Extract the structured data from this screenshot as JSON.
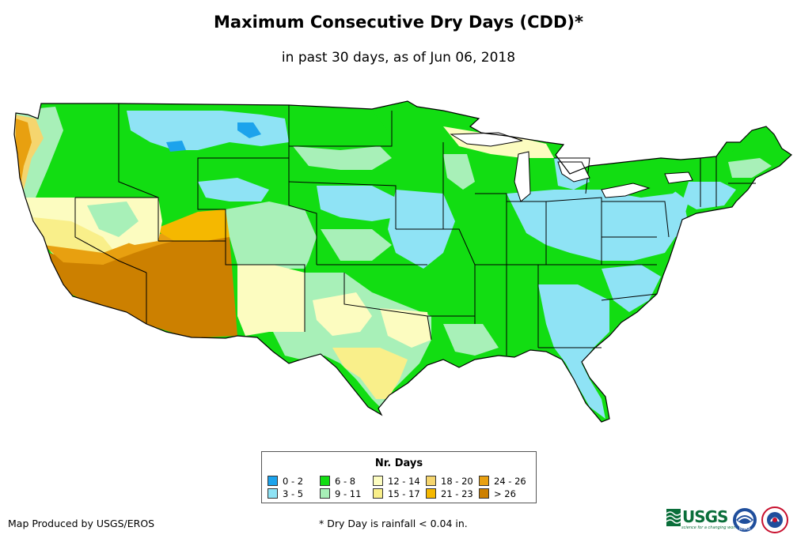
{
  "title": "Maximum Consecutive Dry Days (CDD)*",
  "subtitle": "in past 30 days, as of Jun 06, 2018",
  "legend": {
    "title": "Nr. Days",
    "items": [
      {
        "label": "0 - 2",
        "color": "#1ca3ec"
      },
      {
        "label": "3 - 5",
        "color": "#8fe3f5"
      },
      {
        "label": "6 - 8",
        "color": "#12dd12"
      },
      {
        "label": "9 - 11",
        "color": "#a8f0b8"
      },
      {
        "label": "12 - 14",
        "color": "#fcfcc0"
      },
      {
        "label": "15 - 17",
        "color": "#f9ef8a"
      },
      {
        "label": "18 - 20",
        "color": "#f5d56e"
      },
      {
        "label": "21 - 23",
        "color": "#f5b800"
      },
      {
        "label": "24 - 26",
        "color": "#e8a010"
      },
      {
        "label": "> 26",
        "color": "#cc8000"
      }
    ]
  },
  "footer": {
    "producer": "Map Produced by USGS/EROS",
    "note": "* Dry Day is rainfall < 0.04 in."
  },
  "logos": {
    "usgs_word": "USGS",
    "usgs_tagline": "science for a changing world",
    "noaa": "NOAA"
  },
  "colors": {
    "border": "#000000",
    "background": "#ffffff"
  }
}
